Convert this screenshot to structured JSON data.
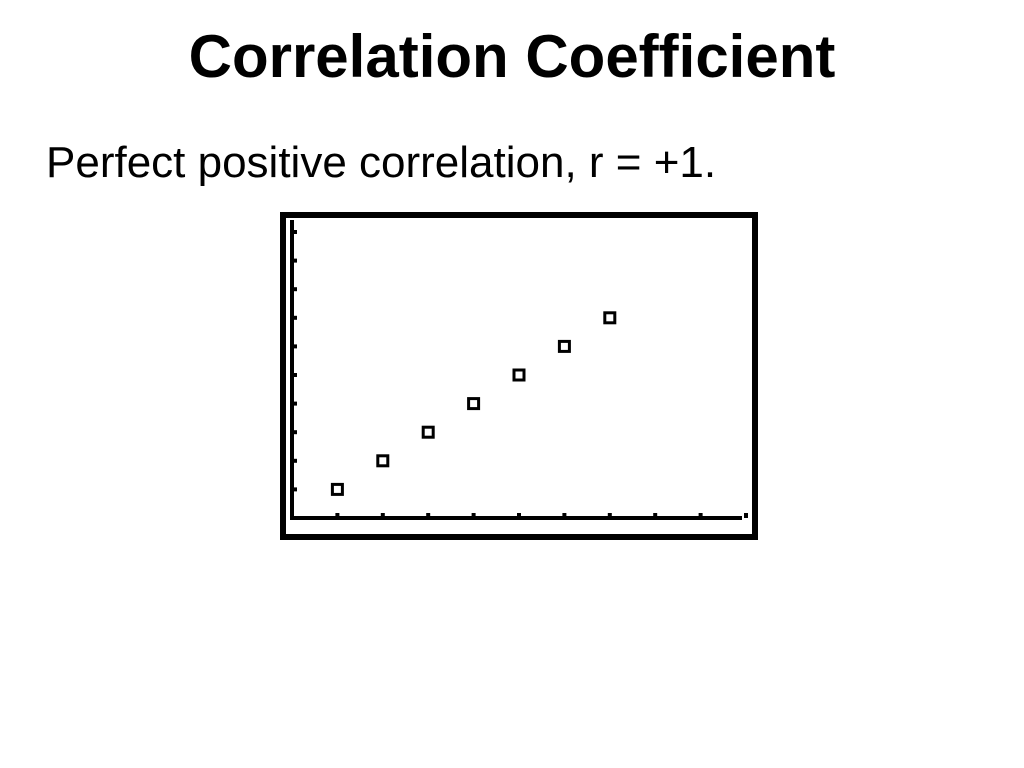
{
  "slide": {
    "title": "Correlation Coefficient",
    "body": "Perfect positive correlation, r = +1."
  },
  "chart_data": {
    "type": "scatter",
    "title": "",
    "xlabel": "",
    "ylabel": "",
    "x": [
      1,
      2,
      3,
      4,
      5,
      6,
      7
    ],
    "y": [
      1,
      2,
      3,
      4,
      5,
      6,
      7
    ],
    "xlim": [
      0,
      10
    ],
    "ylim": [
      0,
      10
    ],
    "x_ticks": [
      1,
      2,
      3,
      4,
      5,
      6,
      7,
      8,
      9,
      10
    ],
    "y_ticks": [
      1,
      2,
      3,
      4,
      5,
      6,
      7,
      8,
      9,
      10
    ],
    "grid": false,
    "legend": "none",
    "marker": "hollow-square",
    "color": "#000000"
  }
}
